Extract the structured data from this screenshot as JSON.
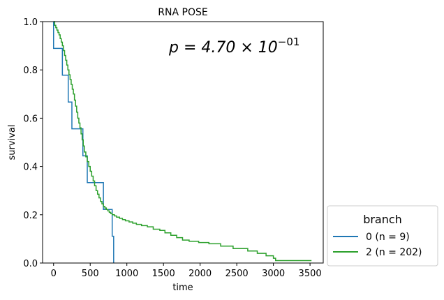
{
  "chart_data": {
    "type": "line",
    "step": "post",
    "title": "RNA POSE",
    "xlabel": "time",
    "ylabel": "survival",
    "xlim": [
      -150,
      3680
    ],
    "ylim": [
      0,
      1
    ],
    "xticks": [
      0,
      500,
      1000,
      1500,
      2000,
      2500,
      3000,
      3500
    ],
    "yticks": [
      0.0,
      0.2,
      0.4,
      0.6,
      0.8,
      1.0
    ],
    "xtick_labels": [
      "0",
      "500",
      "1000",
      "1500",
      "2000",
      "2500",
      "3000",
      "3500"
    ],
    "ytick_labels": [
      "0.0",
      "0.2",
      "0.4",
      "0.6",
      "0.8",
      "1.0"
    ],
    "grid": false,
    "annotation": {
      "text_prefix": "p = 4.70 × 10",
      "text_exponent": "−01",
      "placement": "top-right"
    },
    "legend": {
      "title": "branch",
      "placement": "outside-bottom-right",
      "entries": [
        "0 (n = 9)",
        "2 (n = 202)"
      ]
    },
    "series": [
      {
        "name": "0 (n = 9)",
        "color": "#1f77b4",
        "x": [
          0,
          0,
          120,
          200,
          250,
          400,
          460,
          600,
          680,
          800,
          820
        ],
        "y": [
          1.0,
          0.889,
          0.778,
          0.667,
          0.556,
          0.444,
          0.333,
          0.333,
          0.222,
          0.111,
          0.0
        ]
      },
      {
        "name": "2 (n = 202)",
        "color": "#2ca02c",
        "x": [
          0,
          15,
          30,
          45,
          60,
          75,
          90,
          105,
          120,
          135,
          150,
          165,
          180,
          195,
          210,
          225,
          240,
          255,
          270,
          285,
          300,
          315,
          330,
          345,
          360,
          375,
          390,
          405,
          420,
          440,
          460,
          480,
          500,
          520,
          540,
          560,
          580,
          600,
          620,
          640,
          660,
          680,
          700,
          720,
          740,
          760,
          780,
          800,
          830,
          860,
          900,
          940,
          980,
          1030,
          1080,
          1130,
          1200,
          1280,
          1360,
          1450,
          1520,
          1600,
          1680,
          1760,
          1850,
          1980,
          2120,
          2280,
          2450,
          2650,
          2780,
          2900,
          3000,
          3030,
          3520
        ],
        "y": [
          1.0,
          0.985,
          0.975,
          0.965,
          0.955,
          0.945,
          0.93,
          0.915,
          0.9,
          0.88,
          0.86,
          0.84,
          0.82,
          0.8,
          0.78,
          0.76,
          0.74,
          0.72,
          0.7,
          0.675,
          0.65,
          0.625,
          0.6,
          0.58,
          0.56,
          0.535,
          0.51,
          0.485,
          0.46,
          0.44,
          0.42,
          0.4,
          0.38,
          0.36,
          0.34,
          0.32,
          0.3,
          0.285,
          0.27,
          0.255,
          0.245,
          0.235,
          0.228,
          0.222,
          0.216,
          0.21,
          0.205,
          0.2,
          0.195,
          0.19,
          0.185,
          0.18,
          0.175,
          0.17,
          0.165,
          0.16,
          0.155,
          0.15,
          0.14,
          0.135,
          0.125,
          0.115,
          0.105,
          0.095,
          0.09,
          0.085,
          0.08,
          0.07,
          0.06,
          0.05,
          0.04,
          0.03,
          0.02,
          0.01,
          0.01
        ]
      }
    ]
  }
}
